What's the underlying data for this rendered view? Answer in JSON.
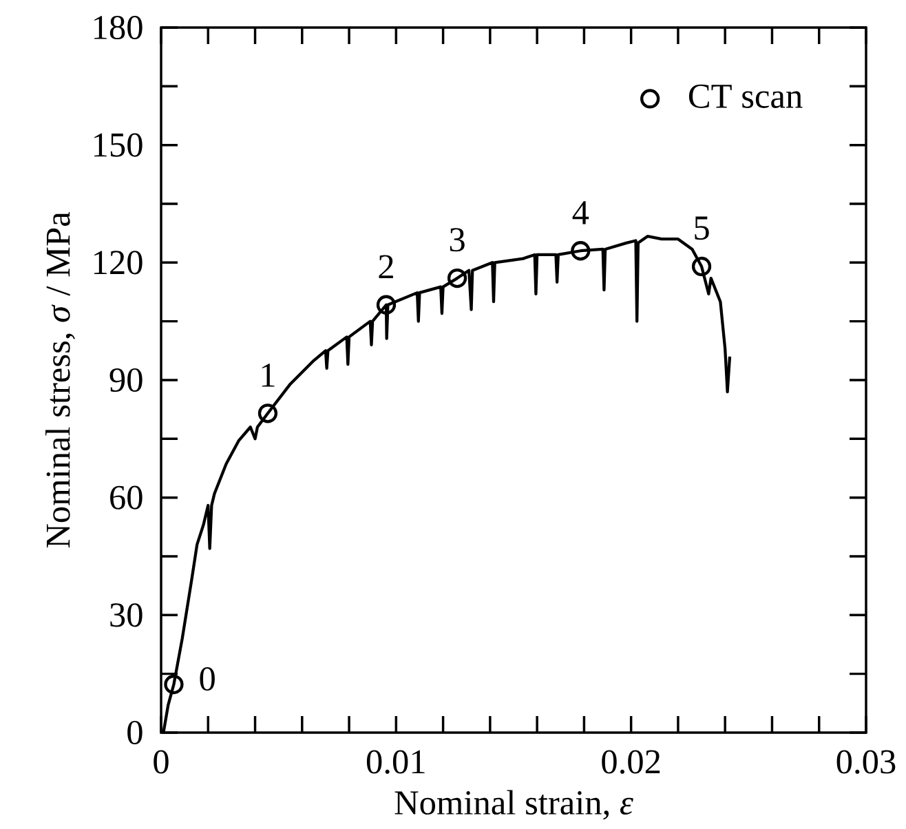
{
  "chart_data": {
    "type": "line",
    "xlabel": "Nominal strain, *ε*",
    "ylabel": "Nominal stress, *σ* / MPa",
    "xlim": [
      0,
      0.03
    ],
    "ylim": [
      0,
      180
    ],
    "xticks": [
      0,
      0.01,
      0.02,
      0.03
    ],
    "yticks": [
      0,
      30,
      60,
      90,
      120,
      150,
      180
    ],
    "grid": false,
    "legend": "top right",
    "series": [
      {
        "color": "#000000",
        "marker": "none",
        "line_style": "solid",
        "x": [
          0.0001,
          0.0003,
          0.00054,
          0.0009,
          0.0013,
          0.00153,
          0.0018,
          0.002,
          0.00207,
          0.00215,
          0.00227,
          0.00277,
          0.0033,
          0.0038,
          0.004,
          0.0041,
          0.00454,
          0.0055,
          0.006,
          0.0065,
          0.007,
          0.00705,
          0.0071,
          0.0079,
          0.00795,
          0.008,
          0.0089,
          0.00895,
          0.009,
          0.00958,
          0.0096,
          0.00965,
          0.0109,
          0.01095,
          0.011,
          0.0119,
          0.01195,
          0.012,
          0.0126,
          0.0131,
          0.0132,
          0.01325,
          0.0141,
          0.01415,
          0.0142,
          0.0154,
          0.0159,
          0.01595,
          0.016,
          0.0168,
          0.01685,
          0.0169,
          0.01785,
          0.0188,
          0.01885,
          0.0189,
          0.0198,
          0.0202,
          0.02025,
          0.0203,
          0.0207,
          0.0213,
          0.022,
          0.0226,
          0.023,
          0.0233,
          0.0234,
          0.0238,
          0.024,
          0.0241,
          0.0242
        ],
        "values": [
          0,
          7,
          12.3,
          24,
          39,
          48,
          53,
          58,
          47,
          58,
          61,
          68.6,
          74.5,
          78,
          75,
          78,
          81.5,
          89,
          92,
          95,
          97.5,
          93,
          97.5,
          101,
          94,
          101,
          105,
          99,
          105,
          109.2,
          100.6,
          109.2,
          112.3,
          105,
          112.3,
          113.8,
          107,
          113.8,
          116,
          118,
          108,
          118,
          120,
          110,
          120,
          121,
          122,
          112,
          122,
          122,
          115,
          122,
          123,
          123.4,
          113,
          123.4,
          125,
          125.6,
          105,
          125,
          126.7,
          126,
          126,
          123.4,
          119,
          112,
          116,
          110,
          98,
          87,
          96
        ]
      },
      {
        "type": "scatter",
        "name": "CT scan",
        "color": "#000000",
        "marker": "circle",
        "x": [
          0.00054,
          0.00454,
          0.00958,
          0.0126,
          0.01785,
          0.023
        ],
        "values": [
          12.3,
          81.5,
          109.2,
          116,
          123,
          119
        ]
      }
    ],
    "annotations": [
      {
        "text": "0",
        "x": 0.00054,
        "y": 12.3
      },
      {
        "text": "1",
        "x": 0.00454,
        "y": 81.5
      },
      {
        "text": "2",
        "x": 0.00958,
        "y": 109.2
      },
      {
        "text": "3",
        "x": 0.0126,
        "y": 116
      },
      {
        "text": "4",
        "x": 0.01785,
        "y": 123
      },
      {
        "text": "5",
        "x": 0.023,
        "y": 119
      }
    ]
  }
}
